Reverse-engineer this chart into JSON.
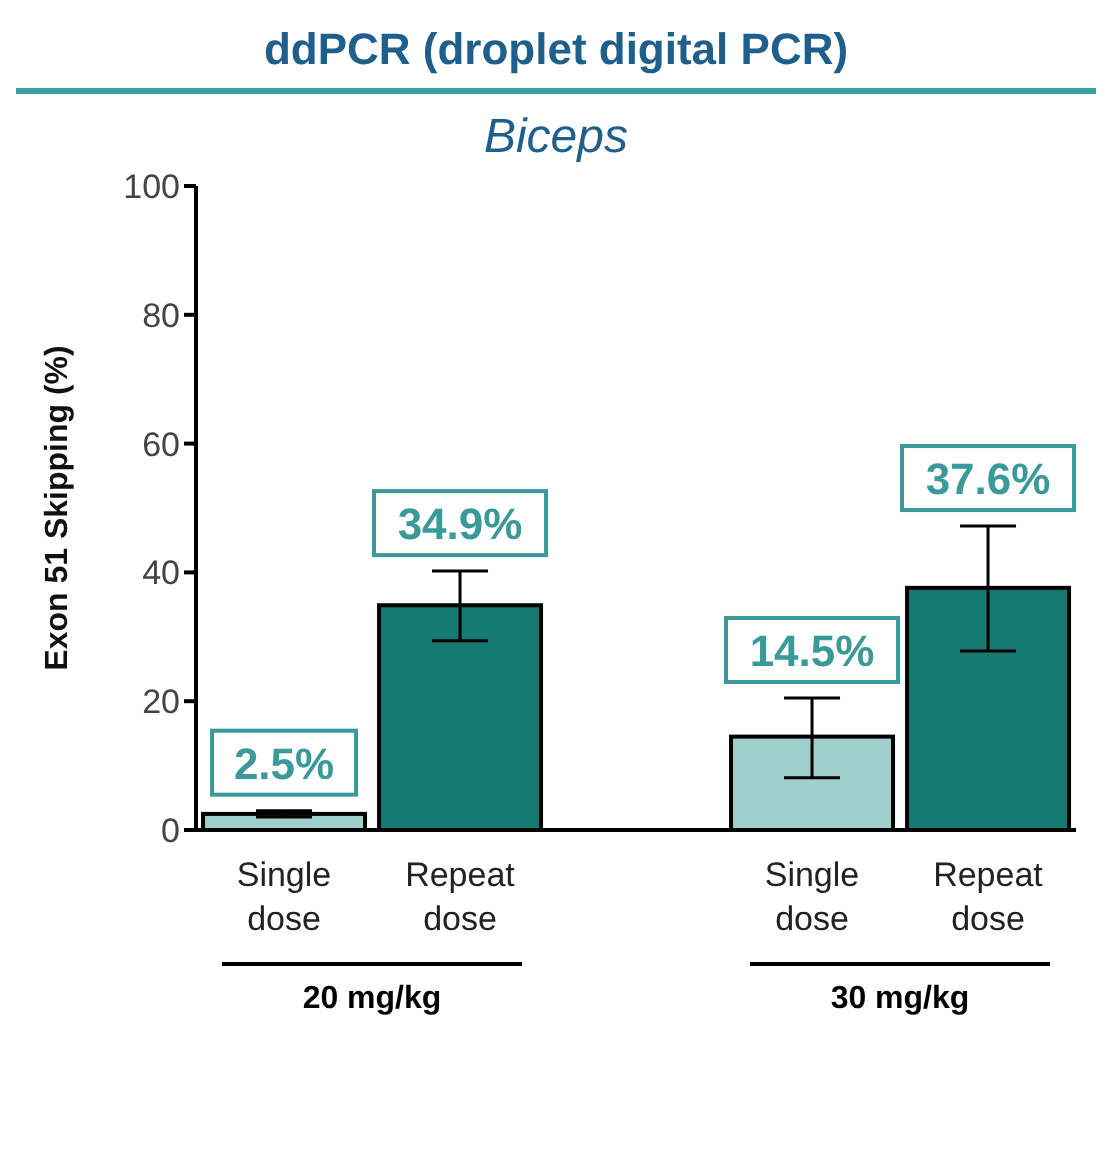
{
  "chart_data": {
    "type": "bar",
    "title": "ddPCR (droplet digital PCR)",
    "subtitle": "Biceps",
    "ylabel": "Exon 51 Skipping (%)",
    "categories": [
      "Single dose",
      "Repeat dose",
      null,
      "Single dose",
      "Repeat dose"
    ],
    "values": [
      2.5,
      34.9,
      null,
      14.5,
      37.6
    ],
    "colors": [
      "#9fd0cc",
      "#147a72",
      "#9fd0cc",
      "#9fd0cc",
      "#147a72"
    ],
    "errors": [
      [
        2.0,
        3.0
      ],
      [
        29.4,
        40.2
      ],
      null,
      [
        8.1,
        20.5
      ],
      [
        27.8,
        47.2
      ]
    ],
    "value_labels": [
      "2.5%",
      "34.9%",
      null,
      "14.5%",
      "37.6%"
    ],
    "annotations": [
      "20 mg/kg",
      "30 mg/kg"
    ],
    "ylim": [
      0,
      100
    ],
    "yticks": [
      0,
      20,
      40,
      60,
      80,
      100
    ],
    "grid": false
  }
}
